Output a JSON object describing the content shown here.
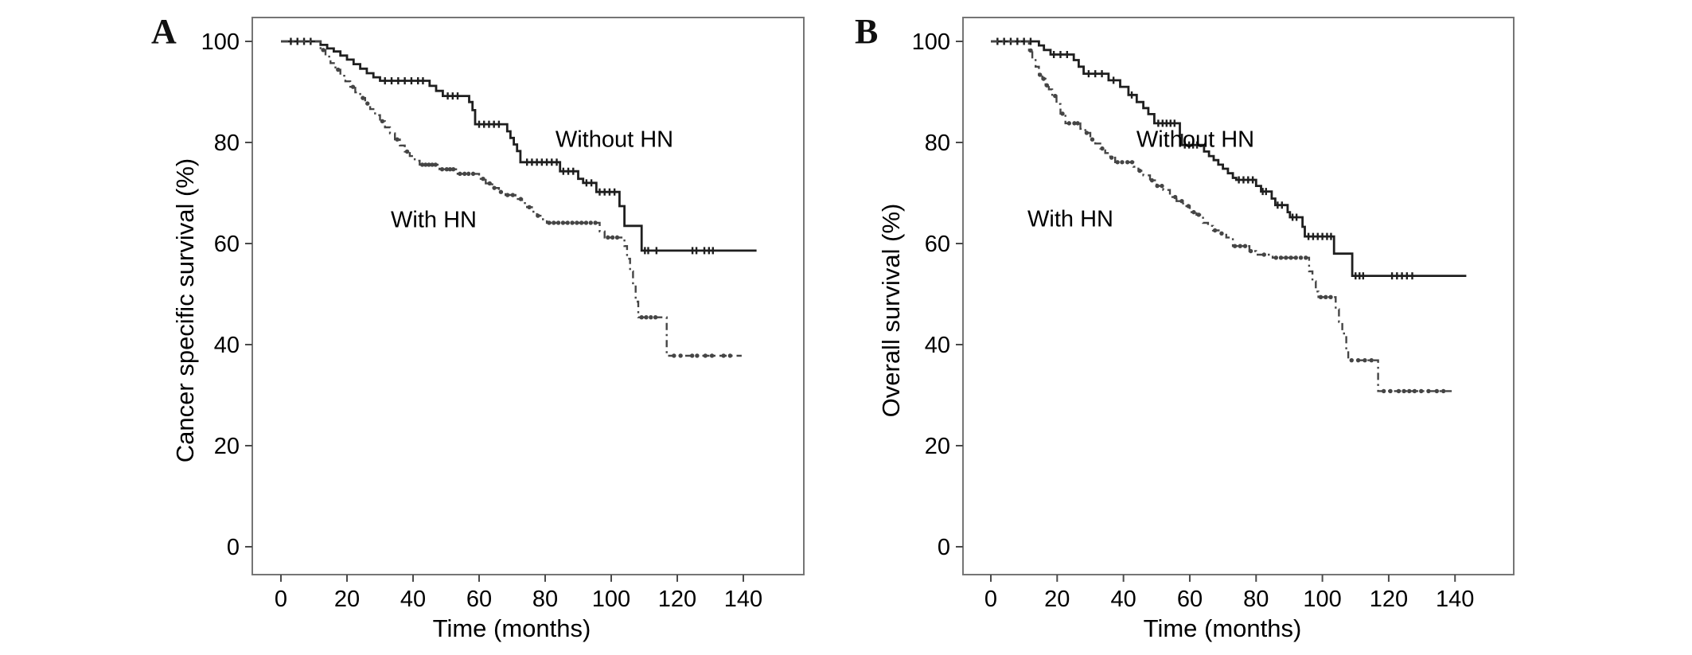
{
  "figure": {
    "background": "#ffffff",
    "frame_color": "#757575",
    "text_color": "#000000"
  },
  "chart_data": [
    {
      "type": "line",
      "subtype": "kaplan-meier-step",
      "panel_label": "A",
      "xlabel": "Time (months)",
      "ylabel": "Cancer specific survival (%)",
      "x_ticks": [
        0,
        20,
        40,
        60,
        80,
        100,
        120,
        140
      ],
      "y_ticks": [
        0,
        20,
        40,
        60,
        80,
        100
      ],
      "xlim": [
        -9,
        158
      ],
      "ylim": [
        -5,
        105
      ],
      "grid": false,
      "legend_position": "inline-labels",
      "series": [
        {
          "name": "Without HN",
          "line_style": "solid",
          "color": "#1f1f1f",
          "end_time": 144,
          "steps": [
            [
              0,
              100
            ],
            [
              12,
              99.3
            ],
            [
              14,
              98.6
            ],
            [
              16,
              98
            ],
            [
              18,
              97.2
            ],
            [
              20,
              96.4
            ],
            [
              22,
              95.5
            ],
            [
              24,
              94.6
            ],
            [
              26,
              93.7
            ],
            [
              28,
              92.9
            ],
            [
              30,
              92.2
            ],
            [
              45,
              91.2
            ],
            [
              47,
              90.2
            ],
            [
              49,
              89.2
            ],
            [
              57,
              88
            ],
            [
              58,
              86.4
            ],
            [
              58.8,
              83.6
            ],
            [
              68.5,
              82.2
            ],
            [
              69.5,
              80.9
            ],
            [
              70.5,
              79.6
            ],
            [
              71.5,
              78.3
            ],
            [
              72.5,
              76.1
            ],
            [
              84.5,
              74.3
            ],
            [
              90,
              72.8
            ],
            [
              91.5,
              72
            ],
            [
              95.5,
              70.2
            ],
            [
              102.5,
              67.4
            ],
            [
              104,
              63.5
            ],
            [
              109.2,
              58.6
            ]
          ],
          "censor_times": [
            3,
            5,
            7,
            9,
            31.5,
            33.5,
            35.5,
            37.5,
            39.5,
            41.5,
            43,
            50.5,
            52,
            53.5,
            60,
            61.5,
            63,
            64.5,
            66,
            74.5,
            76,
            77.5,
            79,
            80.5,
            82,
            83.5,
            85.5,
            87,
            88.5,
            92.5,
            94,
            96.5,
            98,
            99.5,
            101,
            110.2,
            111.2,
            113.7,
            124.6,
            125.8,
            128.2,
            129.6,
            130.8
          ]
        },
        {
          "name": "With HN",
          "line_style": "dash-dot",
          "color": "#454545",
          "end_time": 139.5,
          "steps": [
            [
              0,
              100
            ],
            [
              12,
              98.3
            ],
            [
              13.5,
              97
            ],
            [
              15,
              95.7
            ],
            [
              16.5,
              94.4
            ],
            [
              18,
              93.2
            ],
            [
              19.5,
              92.1
            ],
            [
              21,
              91
            ],
            [
              22.5,
              89.9
            ],
            [
              24,
              88.8
            ],
            [
              25.5,
              87.7
            ],
            [
              27,
              86.6
            ],
            [
              28.5,
              85.4
            ],
            [
              30,
              84.2
            ],
            [
              31.5,
              83
            ],
            [
              33,
              81.8
            ],
            [
              34.5,
              80.6
            ],
            [
              36,
              79.4
            ],
            [
              37.5,
              78.2
            ],
            [
              39,
              77.3
            ],
            [
              40.5,
              76.4
            ],
            [
              42,
              75.6
            ],
            [
              48,
              74.7
            ],
            [
              53.5,
              73.8
            ],
            [
              60,
              72.8
            ],
            [
              62,
              71.9
            ],
            [
              64,
              71
            ],
            [
              66,
              70.2
            ],
            [
              68,
              69.6
            ],
            [
              71,
              68.8
            ],
            [
              73,
              68
            ],
            [
              74.5,
              67.2
            ],
            [
              76,
              66.3
            ],
            [
              77.5,
              65.5
            ],
            [
              79,
              64.8
            ],
            [
              80.5,
              64.1
            ],
            [
              96.5,
              62.4
            ],
            [
              98,
              61.2
            ],
            [
              104,
              59.5
            ],
            [
              104.8,
              57
            ],
            [
              105.7,
              54.5
            ],
            [
              106.6,
              51.5
            ],
            [
              107.4,
              48.5
            ],
            [
              108.2,
              45.4
            ],
            [
              116.8,
              37.8
            ]
          ],
          "censor_times": [
            12.8,
            17.3,
            21.8,
            24.8,
            26.2,
            30.7,
            35.2,
            38.2,
            42.8,
            43.8,
            44.8,
            45.8,
            46.8,
            48.8,
            50.2,
            51.2,
            52.2,
            54.2,
            55.6,
            56.8,
            58.2,
            61.2,
            63.2,
            64.6,
            66.6,
            68.6,
            70.2,
            72.6,
            75.2,
            77.8,
            81.2,
            82.6,
            84,
            85.4,
            86.8,
            88.2,
            89.6,
            91,
            92.4,
            93.8,
            95.2,
            99,
            100.4,
            101.8,
            109.2,
            110.6,
            112,
            113.4,
            119,
            121,
            124.5,
            126,
            128.5,
            130.5,
            134,
            136
          ]
        }
      ]
    },
    {
      "type": "line",
      "subtype": "kaplan-meier-step",
      "panel_label": "B",
      "xlabel": "Time (months)",
      "ylabel": "Overall survival (%)",
      "x_ticks": [
        0,
        20,
        40,
        60,
        80,
        100,
        120,
        140
      ],
      "y_ticks": [
        0,
        20,
        40,
        60,
        80,
        100
      ],
      "xlim": [
        -9,
        158
      ],
      "ylim": [
        -5,
        105
      ],
      "grid": false,
      "legend_position": "inline-labels",
      "series": [
        {
          "name": "Without HN",
          "line_style": "solid",
          "color": "#1f1f1f",
          "end_time": 143.4,
          "steps": [
            [
              0,
              100
            ],
            [
              14.5,
              99.2
            ],
            [
              16,
              98.3
            ],
            [
              18,
              97.4
            ],
            [
              25,
              96.3
            ],
            [
              26.5,
              95
            ],
            [
              28,
              93.6
            ],
            [
              35.5,
              92.3
            ],
            [
              39,
              91
            ],
            [
              41.5,
              89.4
            ],
            [
              44,
              88
            ],
            [
              46,
              86.8
            ],
            [
              47.5,
              85.6
            ],
            [
              49.3,
              83.8
            ],
            [
              57,
              81.5
            ],
            [
              57.6,
              79.5
            ],
            [
              64.3,
              78.2
            ],
            [
              65.8,
              77.3
            ],
            [
              67.2,
              76.5
            ],
            [
              68.6,
              75.6
            ],
            [
              70,
              74.8
            ],
            [
              71.5,
              73.9
            ],
            [
              73,
              73
            ],
            [
              74,
              72.6
            ],
            [
              80,
              71.4
            ],
            [
              81.5,
              70.3
            ],
            [
              84.7,
              68.9
            ],
            [
              85.8,
              67.6
            ],
            [
              89.5,
              66.2
            ],
            [
              90.2,
              65.2
            ],
            [
              94,
              63.3
            ],
            [
              94.7,
              61.4
            ],
            [
              103.5,
              58
            ],
            [
              109,
              53.6
            ]
          ],
          "censor_times": [
            2,
            4,
            6,
            8,
            10,
            12,
            19,
            21,
            23,
            29.5,
            31.5,
            33.5,
            37,
            42.5,
            50.5,
            51.8,
            53,
            54.2,
            55.4,
            58.5,
            59.8,
            61,
            62.2,
            74.8,
            76.2,
            77.6,
            79,
            82,
            83,
            86.5,
            87.8,
            91,
            92.2,
            95.8,
            97.2,
            98.6,
            100,
            101.4,
            102.6,
            110,
            111.2,
            112.3,
            121,
            122.5,
            124,
            125.5,
            127.1
          ]
        },
        {
          "name": "With HN",
          "line_style": "dash-dot",
          "color": "#454545",
          "end_time": 139,
          "steps": [
            [
              0,
              100
            ],
            [
              11.5,
              98.2
            ],
            [
              12.5,
              96.6
            ],
            [
              13.5,
              95
            ],
            [
              14.5,
              93.4
            ],
            [
              15.5,
              92.6
            ],
            [
              16.5,
              91.3
            ],
            [
              17.5,
              90.5
            ],
            [
              18.5,
              89.2
            ],
            [
              19.8,
              87.6
            ],
            [
              21,
              85.7
            ],
            [
              22.5,
              83.8
            ],
            [
              27,
              82.7
            ],
            [
              28.5,
              81.9
            ],
            [
              30,
              80.6
            ],
            [
              31.5,
              79.8
            ],
            [
              33,
              78.8
            ],
            [
              34.5,
              77.9
            ],
            [
              36,
              77
            ],
            [
              37.5,
              76.1
            ],
            [
              43,
              75.2
            ],
            [
              44.5,
              74.4
            ],
            [
              46,
              73.5
            ],
            [
              48,
              72.5
            ],
            [
              50,
              71.4
            ],
            [
              52,
              70.6
            ],
            [
              54,
              69.2
            ],
            [
              56,
              68.4
            ],
            [
              58,
              67.4
            ],
            [
              60,
              66.2
            ],
            [
              62,
              65.7
            ],
            [
              64,
              64.1
            ],
            [
              65.5,
              63.5
            ],
            [
              67,
              62.6
            ],
            [
              69,
              62
            ],
            [
              71,
              61.2
            ],
            [
              73,
              59.5
            ],
            [
              78,
              58.5
            ],
            [
              80,
              57.8
            ],
            [
              85,
              57.2
            ],
            [
              96,
              54.5
            ],
            [
              97,
              52.5
            ],
            [
              98,
              50.5
            ],
            [
              98.8,
              49.4
            ],
            [
              104,
              47
            ],
            [
              105,
              44.5
            ],
            [
              106,
              42.2
            ],
            [
              107.2,
              39
            ],
            [
              107.8,
              36.9
            ],
            [
              116.8,
              30.8
            ]
          ],
          "censor_times": [
            12,
            14.8,
            15.9,
            16.9,
            19.4,
            21.6,
            23.6,
            25.2,
            26.2,
            28.9,
            30.6,
            33.6,
            36.4,
            38.2,
            39.6,
            41.2,
            42.6,
            44.9,
            48.6,
            50.2,
            51.6,
            55.6,
            57.6,
            59.6,
            61.2,
            62.7,
            67.6,
            69.6,
            73.6,
            75.2,
            76.7,
            78.4,
            82.4,
            86,
            87.5,
            89,
            90.5,
            92,
            93.5,
            95,
            99.5,
            101,
            102.5,
            108.8,
            110.8,
            112.8,
            114.8,
            118.5,
            120.5,
            123,
            124.6,
            126.2,
            127.8,
            129.8,
            132,
            134.5,
            136.5
          ]
        }
      ]
    }
  ]
}
